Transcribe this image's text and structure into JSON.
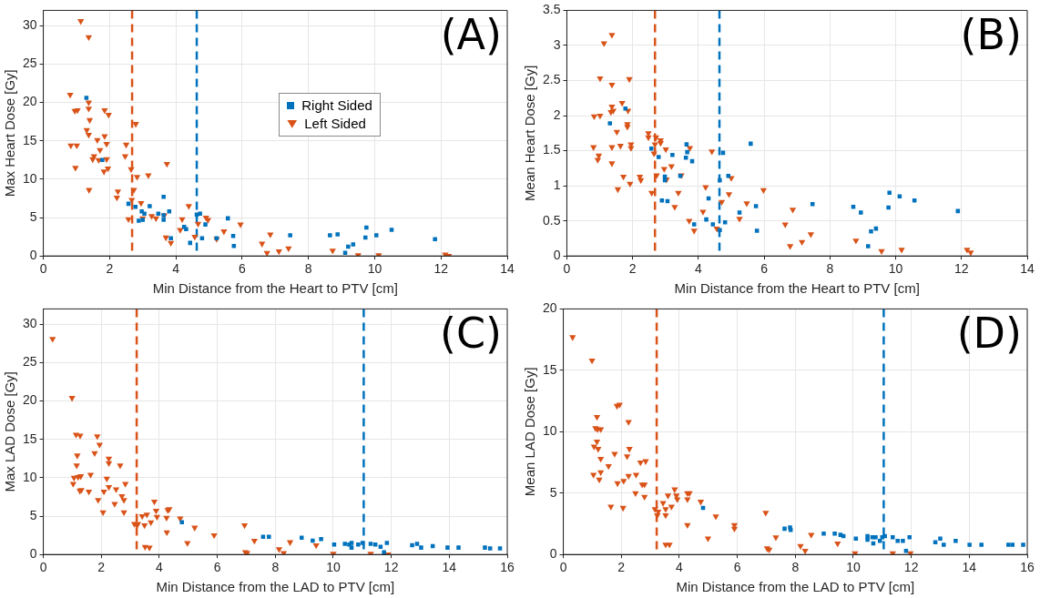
{
  "chart_data": [
    {
      "type": "scatter",
      "xlabel": "Min Distance from the Heart to PTV [cm]",
      "ylabel": "Max Heart Dose [Gy]",
      "annotations": [
        "(A)"
      ],
      "xlim": [
        0,
        14
      ],
      "xticks": [
        0,
        2,
        4,
        6,
        8,
        10,
        12,
        14
      ],
      "ylim": [
        0,
        32
      ],
      "yticks": [
        0,
        5,
        10,
        15,
        20,
        25,
        30
      ],
      "grid": true,
      "legend": "center",
      "ref_lines": [
        {
          "axis": "x",
          "value": 2.68,
          "color": "#d95319",
          "line_style": "dashed"
        },
        {
          "axis": "x",
          "value": 4.63,
          "color": "#0072bd",
          "line_style": "dashed"
        }
      ],
      "series": [
        {
          "name": "Right Sided",
          "color": "#0072bd",
          "marker": "square",
          "x": [
            1.3,
            1.78,
            2.57,
            2.78,
            2.97,
            3.05,
            2.88,
            3.0,
            3.21,
            3.47,
            3.63,
            3.63,
            3.63,
            3.8,
            3.85,
            4.25,
            4.31,
            4.43,
            4.63,
            4.73,
            4.79,
            4.89,
            5.23,
            5.57,
            5.73,
            5.75,
            7.45,
            8.65,
            8.88,
            9.11,
            9.2,
            9.35,
            9.72,
            9.75,
            10.05,
            10.51,
            11.82
          ],
          "values": [
            20.6,
            12.5,
            6.8,
            6.4,
            5.8,
            5.5,
            4.6,
            4.7,
            6.5,
            5.5,
            5.3,
            4.7,
            7.7,
            5.8,
            2.3,
            3.8,
            3.5,
            1.7,
            5.4,
            5.5,
            2.3,
            4.1,
            2.3,
            4.9,
            2.6,
            1.3,
            2.7,
            2.7,
            2.8,
            0.4,
            1.2,
            1.5,
            2.4,
            3.7,
            2.7,
            3.4,
            2.2
          ]
        },
        {
          "name": "Left Sided",
          "color": "#d95319",
          "marker": "triangle",
          "x": [
            1.13,
            1.37,
            0.81,
            0.95,
            1.03,
            1.37,
            1.37,
            1.4,
            1.31,
            1.37,
            0.83,
            1.01,
            1.63,
            1.71,
            1.53,
            1.49,
            1.67,
            1.85,
            1.97,
            1.85,
            1.91,
            1.91,
            1.95,
            1.83,
            0.97,
            1.38,
            2.25,
            2.22,
            2.5,
            2.47,
            2.79,
            2.65,
            2.73,
            2.67,
            2.57,
            2.83,
            3.17,
            2.95,
            3.0,
            3.27,
            3.4,
            3.65,
            3.73,
            3.7,
            3.85,
            4.13,
            4.19,
            4.39,
            4.57,
            4.67,
            4.91,
            4.97,
            5.45,
            5.23,
            5.95,
            6.6,
            6.85,
            6.75,
            7.11,
            7.4,
            8.73,
            9.5,
            10.12,
            12.13,
            12.23
          ],
          "values": [
            30.6,
            28.5,
            21.0,
            18.9,
            19.0,
            20.0,
            19.2,
            17.7,
            16.4,
            15.8,
            14.4,
            14.4,
            15.1,
            13.8,
            13.0,
            12.6,
            12.5,
            19.0,
            18.4,
            15.6,
            14.6,
            12.6,
            11.4,
            11.0,
            11.5,
            8.6,
            8.4,
            7.6,
            14.5,
            13.0,
            17.2,
            11.3,
            8.6,
            7.3,
            4.8,
            10.3,
            10.5,
            6.9,
            4.9,
            5.2,
            4.9,
            5.3,
            12.0,
            2.4,
            1.7,
            3.4,
            4.8,
            6.5,
            2.5,
            4.2,
            5.0,
            4.7,
            3.2,
            2.2,
            4.1,
            1.6,
            2.8,
            0.4,
            0.6,
            1.0,
            0.7,
            0.1,
            0.1,
            0.2,
            0.0
          ]
        }
      ]
    },
    {
      "type": "scatter",
      "xlabel": "Min Distance from the Heart to PTV [cm]",
      "ylabel": "Mean Heart Dose [Gy]",
      "annotations": [
        "(B)"
      ],
      "xlim": [
        0,
        14
      ],
      "xticks": [
        0,
        2,
        4,
        6,
        8,
        10,
        12,
        14
      ],
      "ylim": [
        0,
        3.5
      ],
      "yticks": [
        0,
        0.5,
        1,
        1.5,
        2,
        2.5,
        3,
        3.5
      ],
      "grid": true,
      "ref_lines": [
        {
          "axis": "x",
          "value": 2.68,
          "color": "#d95319",
          "line_style": "dashed"
        },
        {
          "axis": "x",
          "value": 4.64,
          "color": "#0072bd",
          "line_style": "dashed"
        }
      ],
      "series": [
        {
          "color": "#0072bd",
          "marker": "square",
          "x": [
            1.31,
            1.78,
            2.57,
            2.79,
            2.98,
            2.98,
            3.21,
            2.89,
            3.06,
            3.45,
            3.64,
            3.66,
            3.62,
            3.81,
            3.87,
            4.31,
            4.24,
            4.44,
            4.65,
            4.65,
            4.75,
            4.81,
            4.91,
            5.25,
            5.59,
            5.75,
            5.78,
            7.47,
            8.71,
            8.94,
            9.16,
            9.25,
            9.4,
            9.78,
            9.81,
            10.12,
            10.57,
            11.89
          ],
          "values": [
            1.89,
            2.1,
            1.53,
            1.41,
            1.13,
            1.08,
            1.44,
            0.79,
            0.78,
            1.14,
            1.59,
            1.48,
            1.4,
            1.35,
            0.45,
            0.82,
            0.52,
            0.45,
            1.08,
            0.37,
            1.47,
            0.48,
            1.14,
            0.62,
            1.6,
            0.71,
            0.36,
            0.74,
            0.7,
            0.62,
            0.14,
            0.35,
            0.39,
            0.69,
            0.9,
            0.85,
            0.79,
            0.64
          ]
        },
        {
          "color": "#d95319",
          "marker": "triangle",
          "x": [
            1.13,
            1.37,
            1.01,
            1.37,
            1.9,
            0.83,
            1.01,
            1.37,
            1.34,
            1.41,
            1.68,
            1.86,
            1.84,
            1.84,
            1.52,
            0.81,
            0.97,
            0.94,
            1.37,
            1.63,
            1.95,
            1.95,
            1.37,
            1.72,
            1.55,
            1.92,
            2.22,
            2.25,
            2.48,
            2.48,
            2.71,
            2.85,
            2.85,
            2.68,
            2.65,
            2.73,
            2.58,
            3.01,
            2.96,
            3.03,
            3.18,
            3.28,
            3.48,
            3.39,
            3.74,
            3.72,
            3.87,
            4.14,
            4.22,
            4.41,
            4.56,
            4.71,
            4.93,
            5.0,
            5.25,
            5.47,
            5.98,
            6.64,
            6.87,
            6.79,
            7.15,
            7.42,
            8.79,
            9.57,
            10.18,
            12.17,
            12.28
          ],
          "values": [
            3.03,
            3.15,
            2.53,
            2.44,
            2.52,
            1.99,
            2.0,
            2.13,
            2.05,
            2.07,
            2.18,
            2.07,
            1.88,
            1.84,
            1.77,
            1.55,
            1.43,
            1.37,
            1.55,
            1.57,
            1.59,
            1.54,
            1.32,
            1.13,
            0.95,
            1.03,
            1.13,
            1.08,
            1.75,
            1.69,
            1.69,
            1.65,
            1.61,
            1.59,
            1.46,
            1.15,
            0.9,
            1.52,
            1.24,
            1.09,
            1.28,
            0.7,
            1.15,
            0.9,
            1.54,
            0.5,
            0.36,
            0.63,
            0.98,
            1.49,
            0.39,
            0.77,
            0.88,
            1.11,
            0.53,
            0.75,
            0.94,
            0.45,
            0.66,
            0.14,
            0.2,
            0.31,
            0.22,
            0.07,
            0.09,
            0.09,
            0.05
          ]
        }
      ]
    },
    {
      "type": "scatter",
      "xlabel": "Min Distance from the LAD to PTV [cm]",
      "ylabel": "Max LAD Dose [Gy]",
      "annotations": [
        "(C)"
      ],
      "xlim": [
        0,
        16
      ],
      "xticks": [
        0,
        2,
        4,
        6,
        8,
        10,
        12,
        14,
        16
      ],
      "ylim": [
        0,
        32
      ],
      "yticks": [
        0,
        5,
        10,
        15,
        20,
        25,
        30
      ],
      "grid": true,
      "ref_lines": [
        {
          "axis": "x",
          "value": 3.22,
          "color": "#d95319",
          "line_style": "dashed"
        },
        {
          "axis": "x",
          "value": 11.05,
          "color": "#0072bd",
          "line_style": "dashed"
        }
      ],
      "series": [
        {
          "color": "#0072bd",
          "marker": "square",
          "x": [
            4.78,
            7.58,
            7.78,
            8.91,
            9.29,
            9.58,
            10.03,
            10.4,
            10.55,
            10.63,
            10.63,
            10.86,
            11.01,
            11.29,
            11.45,
            11.63,
            11.75,
            11.85,
            12.72,
            12.89,
            13.03,
            13.43,
            13.94,
            14.32,
            15.23,
            15.41,
            15.75
          ],
          "values": [
            4.2,
            2.3,
            2.3,
            2.2,
            1.8,
            2.0,
            1.3,
            1.4,
            1.3,
            1.5,
            0.9,
            1.3,
            1.5,
            1.4,
            1.3,
            1.0,
            0.3,
            1.5,
            1.2,
            1.4,
            0.9,
            1.1,
            0.9,
            0.9,
            0.9,
            0.8,
            0.8
          ]
        },
        {
          "color": "#d95319",
          "marker": "triangle",
          "x": [
            0.32,
            0.99,
            1.13,
            1.27,
            1.17,
            1.15,
            1.06,
            1.03,
            1.2,
            1.29,
            1.26,
            1.31,
            1.57,
            1.63,
            1.77,
            1.86,
            1.94,
            1.89,
            2.06,
            2.09,
            2.19,
            2.26,
            2.26,
            2.26,
            2.51,
            2.65,
            2.71,
            2.78,
            2.83,
            2.46,
            2.78,
            3.14,
            3.23,
            3.26,
            3.41,
            3.49,
            3.57,
            3.71,
            3.83,
            3.89,
            3.92,
            3.51,
            3.66,
            4.25,
            4.29,
            4.34,
            4.26,
            4.72,
            4.97,
            5.22,
            5.89,
            6.94,
            6.97,
            7.03,
            7.28,
            8.13,
            8.29,
            8.51,
            9.41,
            10.0,
            11.29,
            11.89
          ],
          "values": [
            28.1,
            20.4,
            15.6,
            15.5,
            12.9,
            11.6,
            10.0,
            9.2,
            10.1,
            10.2,
            8.3,
            8.4,
            8.2,
            10.4,
            13.2,
            15.4,
            14.3,
            7.1,
            5.5,
            8.2,
            9.9,
            12.5,
            11.9,
            8.8,
            8.5,
            11.6,
            7.6,
            7.1,
            9.2,
            6.6,
            5.5,
            4.0,
            3.8,
            4.0,
            5.0,
            3.8,
            5.2,
            4.2,
            6.9,
            5.7,
            4.9,
            1.0,
            0.9,
            4.8,
            5.8,
            5.9,
            2.9,
            4.7,
            1.5,
            3.5,
            2.5,
            3.8,
            0.3,
            0.2,
            1.8,
            0.7,
            0.2,
            1.6,
            1.2,
            0.1,
            0.1,
            0.0
          ]
        }
      ]
    },
    {
      "type": "scatter",
      "xlabel": "Min Distance from the LAD to PTV [cm]",
      "ylabel": "Mean LAD Dose [Gy]",
      "annotations": [
        "(D)"
      ],
      "xlim": [
        0,
        16
      ],
      "xticks": [
        0,
        2,
        4,
        6,
        8,
        10,
        12,
        14,
        16
      ],
      "ylim": [
        0,
        20
      ],
      "yticks": [
        0,
        5,
        10,
        15,
        20
      ],
      "grid": true,
      "ref_lines": [
        {
          "axis": "x",
          "value": 3.22,
          "color": "#d95319",
          "line_style": "dashed"
        },
        {
          "axis": "x",
          "value": 11.05,
          "color": "#0072bd",
          "line_style": "dashed"
        }
      ],
      "series": [
        {
          "color": "#0072bd",
          "marker": "square",
          "x": [
            4.82,
            7.63,
            7.82,
            7.84,
            8.98,
            9.36,
            9.56,
            9.66,
            10.09,
            10.49,
            10.49,
            10.66,
            10.69,
            10.77,
            10.92,
            11.0,
            11.09,
            11.36,
            11.53,
            11.71,
            11.82,
            11.94,
            12.83,
            13.0,
            13.12,
            13.53,
            14.01,
            14.42,
            15.35,
            15.49,
            15.86
          ],
          "values": [
            3.8,
            2.1,
            2.2,
            2.0,
            1.7,
            1.7,
            1.6,
            1.5,
            1.3,
            1.5,
            1.2,
            1.4,
            0.9,
            1.4,
            1.1,
            1.4,
            1.5,
            1.4,
            1.1,
            1.1,
            0.3,
            1.4,
            1.0,
            1.3,
            0.8,
            1.1,
            0.8,
            0.8,
            0.8,
            0.8,
            0.8
          ]
        },
        {
          "color": "#d95319",
          "marker": "triangle",
          "x": [
            0.32,
            0.99,
            1.16,
            1.11,
            1.18,
            1.29,
            1.16,
            1.06,
            1.2,
            1.29,
            1.04,
            1.29,
            1.24,
            1.56,
            1.64,
            1.85,
            1.94,
            2.25,
            1.77,
            2.2,
            2.28,
            1.87,
            2.08,
            2.25,
            2.06,
            2.51,
            2.49,
            2.66,
            2.84,
            2.72,
            2.8,
            2.8,
            3.16,
            3.24,
            3.27,
            3.44,
            3.53,
            3.53,
            3.61,
            3.73,
            3.84,
            3.9,
            3.93,
            3.53,
            3.66,
            4.28,
            4.35,
            4.28,
            4.28,
            4.74,
            4.99,
            5.26,
            5.9,
            5.9,
            6.98,
            7.03,
            7.1,
            7.33,
            8.18,
            8.34,
            8.55,
            9.46,
            10.06,
            11.36,
            11.97
          ],
          "values": [
            17.7,
            15.8,
            11.2,
            10.3,
            10.2,
            10.2,
            9.2,
            8.8,
            8.6,
            7.8,
            6.5,
            6.7,
            6.1,
            7.2,
            3.9,
            12.1,
            12.2,
            10.8,
            8.2,
            8.0,
            8.6,
            5.8,
            6.0,
            6.4,
            3.8,
            6.5,
            5.0,
            7.5,
            7.6,
            5.7,
            5.7,
            4.7,
            3.7,
            3.2,
            3.5,
            4.2,
            3.7,
            3.2,
            4.8,
            3.9,
            5.3,
            4.8,
            4.5,
            0.8,
            0.8,
            5.0,
            5.0,
            4.5,
            2.4,
            4.3,
            1.3,
            3.1,
            2.4,
            2.1,
            3.4,
            0.5,
            0.4,
            1.4,
            0.7,
            0.3,
            1.6,
            0.9,
            0.1,
            0.1,
            0.1
          ]
        }
      ]
    }
  ]
}
